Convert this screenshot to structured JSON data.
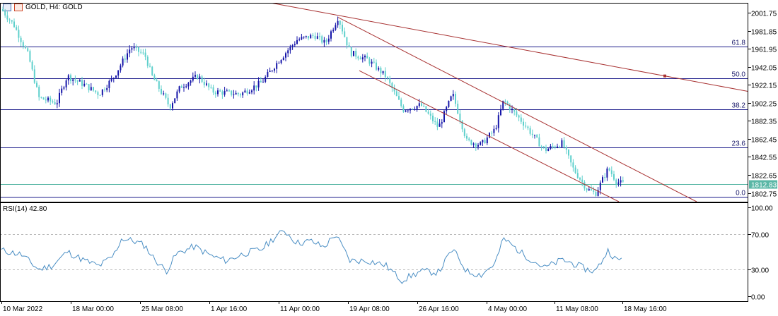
{
  "header": {
    "symbol_label": "GOLD, H4:  GOLD",
    "icon_left": "chart-grid-icon",
    "icon_right": "chart-bars-icon"
  },
  "indicator": {
    "label": "RSI(14) 42.80"
  },
  "colors": {
    "bull": "#1515a8",
    "bear": "#5fd0cc",
    "fib": "#1a1a8a",
    "trend": "#a83232",
    "rsi": "#4a8ec4",
    "current": "#5ab7a6"
  },
  "chart_data": [
    {
      "type": "candlestick",
      "title": "GOLD, H4:  GOLD",
      "ylim": [
        1793,
        2013
      ],
      "y_ticks": [
        2001.75,
        1981.85,
        1961.95,
        1942.05,
        1922.15,
        1902.25,
        1882.35,
        1862.45,
        1842.55,
        1822.65,
        1802.75
      ],
      "current_price": 1812.83,
      "x_ticks": [
        "10 Mar 2022",
        "18 Mar 00:00",
        "25 Mar 08:00",
        "1 Apr 16:00",
        "11 Apr 00:00",
        "19 Apr 08:00",
        "26 Apr 16:00",
        "4 May 00:00",
        "11 May 08:00",
        "18 May 16:00"
      ],
      "fibonacci_levels": [
        {
          "label": "61.8",
          "price": 1964.6
        },
        {
          "label": "50.0",
          "price": 1929.8
        },
        {
          "label": "38.2",
          "price": 1895.5
        },
        {
          "label": "23.6",
          "price": 1853.0
        },
        {
          "label": "0.0",
          "price": 1798.5
        }
      ],
      "price_path": [
        {
          "x": 0,
          "price": 2008
        },
        {
          "x": 20,
          "price": 1988
        },
        {
          "x": 40,
          "price": 1955
        },
        {
          "x": 55,
          "price": 1908
        },
        {
          "x": 80,
          "price": 1902
        },
        {
          "x": 95,
          "price": 1932
        },
        {
          "x": 120,
          "price": 1922
        },
        {
          "x": 140,
          "price": 1912
        },
        {
          "x": 160,
          "price": 1930
        },
        {
          "x": 185,
          "price": 1964
        },
        {
          "x": 205,
          "price": 1955
        },
        {
          "x": 215,
          "price": 1932
        },
        {
          "x": 240,
          "price": 1898
        },
        {
          "x": 255,
          "price": 1920
        },
        {
          "x": 280,
          "price": 1932
        },
        {
          "x": 300,
          "price": 1915
        },
        {
          "x": 340,
          "price": 1912
        },
        {
          "x": 370,
          "price": 1925
        },
        {
          "x": 395,
          "price": 1950
        },
        {
          "x": 420,
          "price": 1972
        },
        {
          "x": 445,
          "price": 1977
        },
        {
          "x": 460,
          "price": 1968
        },
        {
          "x": 478,
          "price": 1997
        },
        {
          "x": 495,
          "price": 1958
        },
        {
          "x": 520,
          "price": 1950
        },
        {
          "x": 545,
          "price": 1932
        },
        {
          "x": 570,
          "price": 1895
        },
        {
          "x": 595,
          "price": 1900
        },
        {
          "x": 620,
          "price": 1875
        },
        {
          "x": 640,
          "price": 1912
        },
        {
          "x": 660,
          "price": 1860
        },
        {
          "x": 680,
          "price": 1856
        },
        {
          "x": 700,
          "price": 1873
        },
        {
          "x": 712,
          "price": 1905
        },
        {
          "x": 740,
          "price": 1880
        },
        {
          "x": 770,
          "price": 1850
        },
        {
          "x": 795,
          "price": 1858
        },
        {
          "x": 810,
          "price": 1830
        },
        {
          "x": 830,
          "price": 1807
        },
        {
          "x": 842,
          "price": 1802
        },
        {
          "x": 860,
          "price": 1830
        },
        {
          "x": 872,
          "price": 1815
        },
        {
          "x": 882,
          "price": 1812.83
        }
      ],
      "trend_lines": [
        {
          "from": {
            "x": 355,
            "price": 2017
          },
          "to": {
            "x": 1058,
            "price": 1915
          }
        },
        {
          "from": {
            "x": 478,
            "price": 1997
          },
          "to": {
            "x": 985,
            "price": 1793
          }
        },
        {
          "from": {
            "x": 508,
            "price": 1938
          },
          "to": {
            "x": 875,
            "price": 1793
          }
        }
      ]
    },
    {
      "type": "line",
      "title": "RSI(14) 42.80",
      "ylim": [
        0,
        100
      ],
      "y_ticks": [
        100.0,
        70.0,
        30.0,
        0.0
      ],
      "levels": [
        70,
        30
      ],
      "value": 42.8,
      "series_points": [
        {
          "x": 0,
          "v": 52
        },
        {
          "x": 30,
          "v": 47
        },
        {
          "x": 55,
          "v": 30
        },
        {
          "x": 75,
          "v": 35
        },
        {
          "x": 95,
          "v": 50
        },
        {
          "x": 120,
          "v": 40
        },
        {
          "x": 140,
          "v": 34
        },
        {
          "x": 160,
          "v": 45
        },
        {
          "x": 172,
          "v": 65
        },
        {
          "x": 190,
          "v": 62
        },
        {
          "x": 205,
          "v": 57
        },
        {
          "x": 215,
          "v": 45
        },
        {
          "x": 235,
          "v": 28
        },
        {
          "x": 250,
          "v": 48
        },
        {
          "x": 275,
          "v": 56
        },
        {
          "x": 300,
          "v": 45
        },
        {
          "x": 320,
          "v": 40
        },
        {
          "x": 345,
          "v": 48
        },
        {
          "x": 370,
          "v": 53
        },
        {
          "x": 385,
          "v": 64
        },
        {
          "x": 402,
          "v": 74
        },
        {
          "x": 420,
          "v": 60
        },
        {
          "x": 440,
          "v": 62
        },
        {
          "x": 458,
          "v": 55
        },
        {
          "x": 474,
          "v": 70
        },
        {
          "x": 495,
          "v": 40
        },
        {
          "x": 520,
          "v": 40
        },
        {
          "x": 545,
          "v": 35
        },
        {
          "x": 568,
          "v": 18
        },
        {
          "x": 595,
          "v": 28
        },
        {
          "x": 620,
          "v": 27
        },
        {
          "x": 640,
          "v": 53
        },
        {
          "x": 660,
          "v": 28
        },
        {
          "x": 680,
          "v": 24
        },
        {
          "x": 700,
          "v": 37
        },
        {
          "x": 712,
          "v": 65
        },
        {
          "x": 740,
          "v": 47
        },
        {
          "x": 770,
          "v": 32
        },
        {
          "x": 795,
          "v": 41
        },
        {
          "x": 810,
          "v": 37
        },
        {
          "x": 830,
          "v": 30
        },
        {
          "x": 842,
          "v": 28
        },
        {
          "x": 860,
          "v": 52
        },
        {
          "x": 872,
          "v": 40
        },
        {
          "x": 882,
          "v": 42.8
        }
      ]
    }
  ]
}
